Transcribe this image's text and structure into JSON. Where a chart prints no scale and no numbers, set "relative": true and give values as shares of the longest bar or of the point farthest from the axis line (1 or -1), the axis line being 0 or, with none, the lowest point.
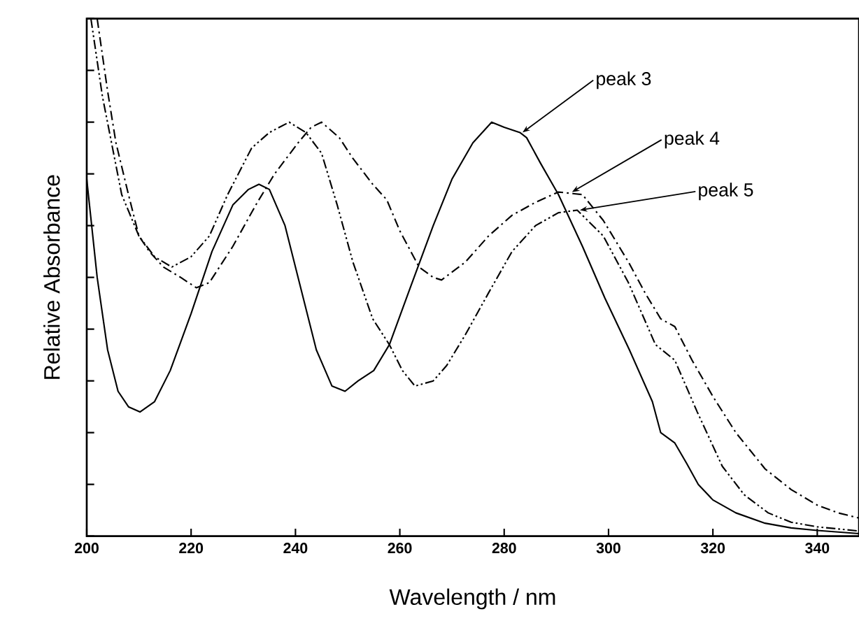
{
  "chart_data": {
    "type": "line",
    "relative": true,
    "xlabel": "Wavelength / nm",
    "ylabel": "Relative Absorbance",
    "xlim": [
      200,
      348
    ],
    "xticks": [
      200,
      220,
      240,
      260,
      280,
      300,
      320,
      340
    ],
    "grid": false,
    "marker": "none",
    "series": [
      {
        "color": "#000000",
        "line_style": "solid",
        "x": [
          200,
          202,
          204,
          206,
          208,
          210.2,
          213,
          216,
          220,
          224,
          228,
          231,
          233,
          235,
          238,
          241,
          244,
          247,
          249.5,
          252,
          255,
          258,
          262,
          266.4,
          270,
          274,
          277.6,
          280,
          283,
          284.3,
          287,
          290.4,
          295,
          299.3,
          304,
          308.4,
          310,
          312.7,
          315,
          317.2,
          320,
          324.4,
          330,
          335,
          340,
          344,
          348
        ],
        "values": [
          0.69,
          0.5,
          0.36,
          0.28,
          0.25,
          0.24,
          0.26,
          0.32,
          0.43,
          0.55,
          0.64,
          0.67,
          0.68,
          0.67,
          0.6,
          0.48,
          0.36,
          0.29,
          0.28,
          0.3,
          0.32,
          0.37,
          0.48,
          0.6,
          0.69,
          0.76,
          0.8,
          0.79,
          0.78,
          0.77,
          0.72,
          0.66,
          0.56,
          0.46,
          0.36,
          0.26,
          0.2,
          0.18,
          0.14,
          0.1,
          0.07,
          0.045,
          0.025,
          0.016,
          0.011,
          0.008,
          0.005
        ]
      },
      {
        "color": "#000000",
        "line_style": "dashdot",
        "x": [
          202,
          204,
          205.6,
          208,
          210,
          212,
          214.7,
          218,
          221,
          223.5,
          228,
          232.4,
          236,
          240.5,
          243,
          245,
          248.4,
          251,
          254.8,
          257.5,
          260,
          263.7,
          266.4,
          268,
          272.6,
          277,
          281.5,
          286,
          290.4,
          295,
          299,
          303.8,
          307,
          310,
          312.7,
          316,
          320,
          324.4,
          330,
          335,
          340,
          344,
          348
        ],
        "values": [
          1.0,
          0.86,
          0.76,
          0.66,
          0.58,
          0.55,
          0.52,
          0.5,
          0.48,
          0.49,
          0.56,
          0.64,
          0.7,
          0.76,
          0.79,
          0.8,
          0.77,
          0.73,
          0.68,
          0.65,
          0.59,
          0.52,
          0.5,
          0.495,
          0.53,
          0.58,
          0.62,
          0.645,
          0.665,
          0.66,
          0.61,
          0.53,
          0.47,
          0.42,
          0.405,
          0.34,
          0.27,
          0.2,
          0.13,
          0.09,
          0.06,
          0.045,
          0.035
        ]
      },
      {
        "color": "#000000",
        "line_style": "dashdotdot",
        "x": [
          200.8,
          203,
          206.7,
          210,
          213,
          216.3,
          220,
          223.5,
          227,
          231.6,
          235,
          238.8,
          242,
          245,
          248,
          251,
          254.8,
          258,
          260.5,
          262.9,
          266.4,
          269,
          272.6,
          277,
          281.5,
          286,
          290.4,
          294,
          299,
          303.8,
          309,
          312.7,
          317,
          321.8,
          326,
          330.6,
          335,
          340,
          344,
          348
        ],
        "values": [
          1.0,
          0.85,
          0.66,
          0.58,
          0.54,
          0.52,
          0.54,
          0.58,
          0.66,
          0.75,
          0.78,
          0.8,
          0.78,
          0.74,
          0.64,
          0.53,
          0.42,
          0.37,
          0.32,
          0.29,
          0.3,
          0.33,
          0.39,
          0.47,
          0.55,
          0.6,
          0.625,
          0.63,
          0.58,
          0.49,
          0.37,
          0.34,
          0.24,
          0.135,
          0.08,
          0.045,
          0.027,
          0.018,
          0.014,
          0.01
        ]
      }
    ],
    "annotations": [
      {
        "text": "peak 3",
        "x": 283.5,
        "y": 0.78
      },
      {
        "text": "peak 4",
        "x": 293,
        "y": 0.665
      },
      {
        "text": "peak 5",
        "x": 294.5,
        "y": 0.63
      }
    ]
  }
}
